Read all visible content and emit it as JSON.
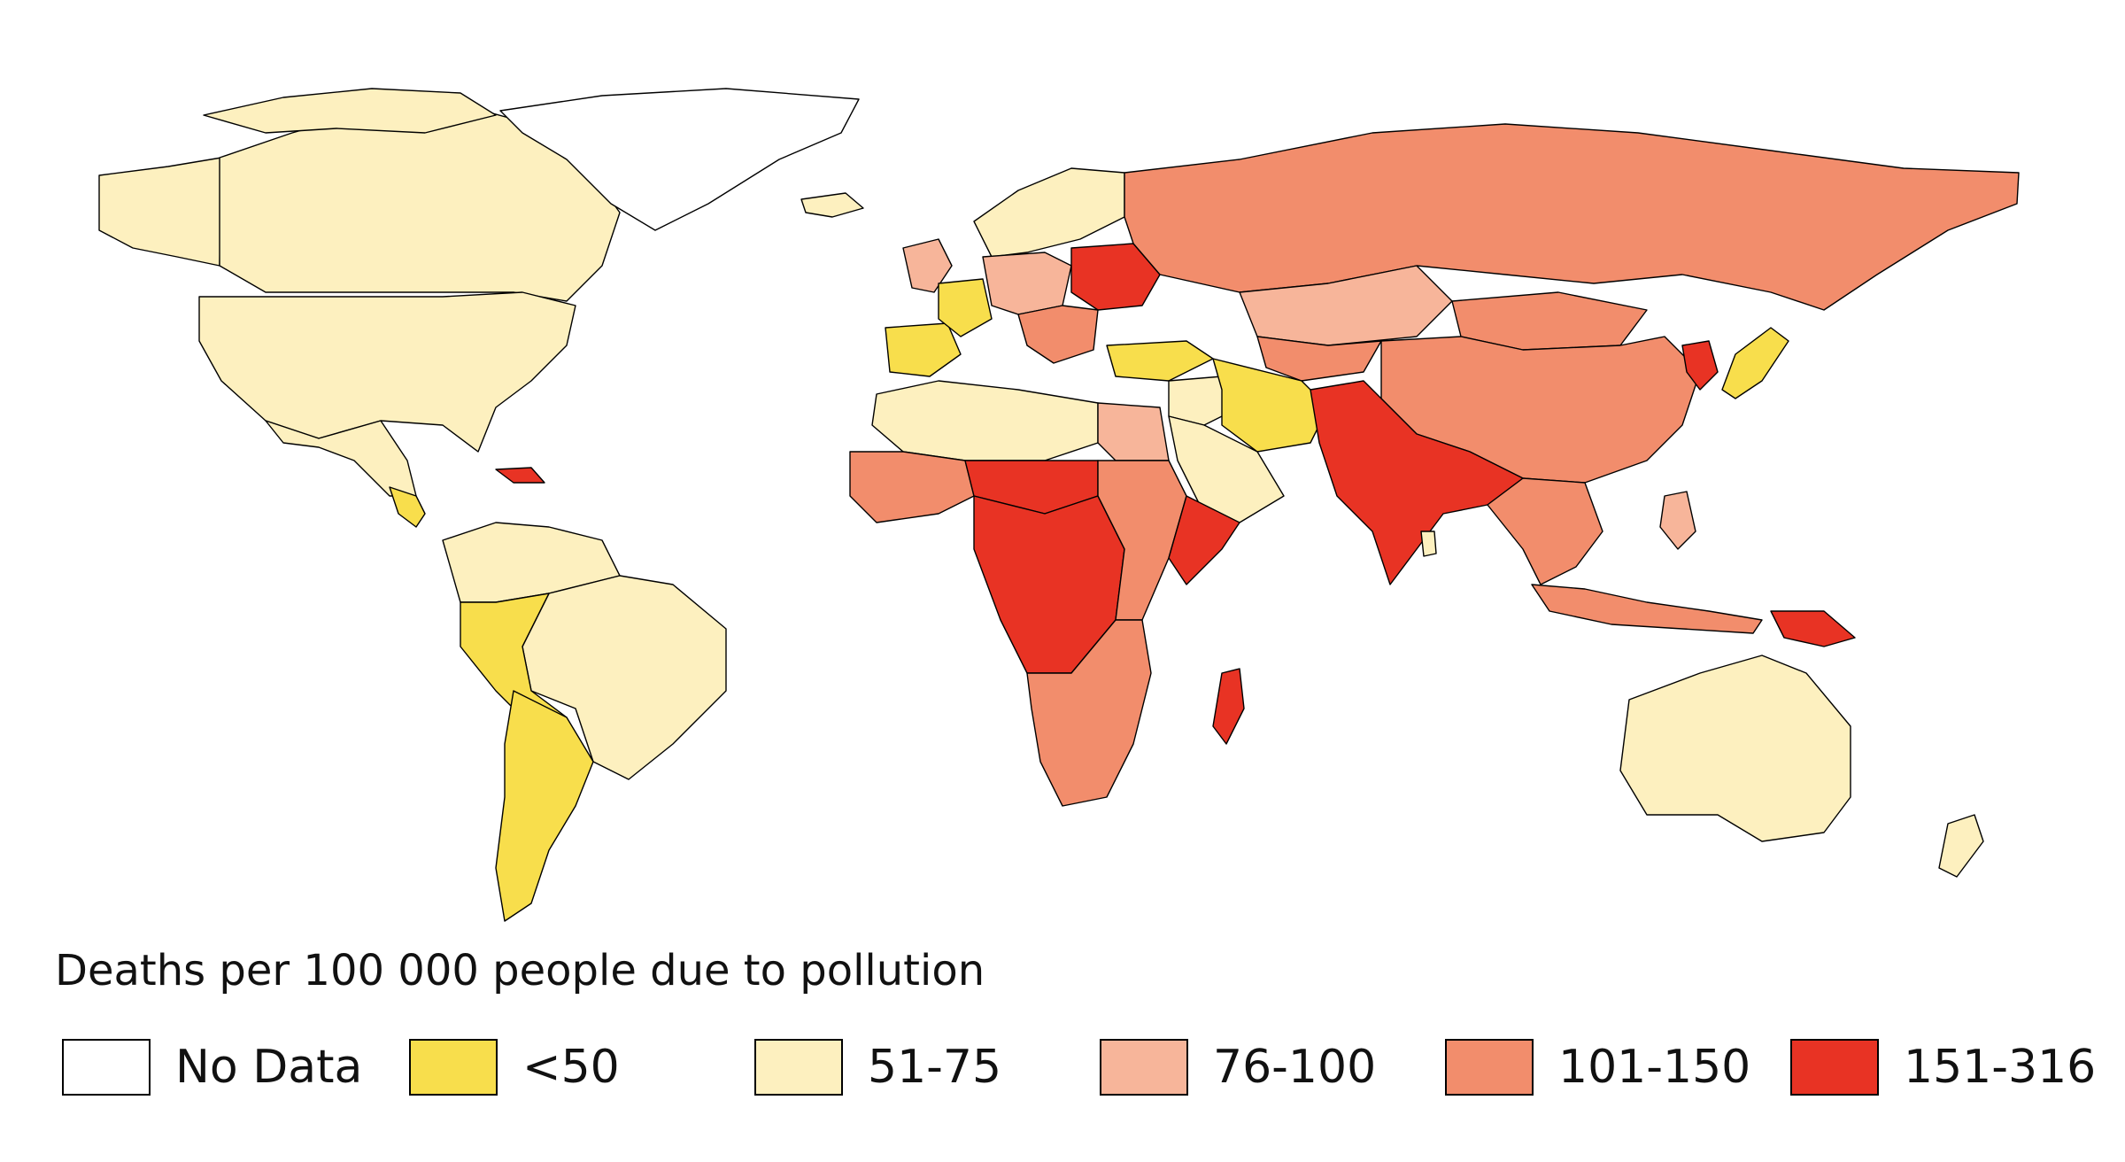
{
  "legend": {
    "title": "Deaths per 100 000 people due to pollution",
    "items": [
      {
        "label": "No Data",
        "color": "#ffffff"
      },
      {
        "label": "<50",
        "color": "#f8de4c"
      },
      {
        "label": "51-75",
        "color": "#fdf0bf"
      },
      {
        "label": "76-100",
        "color": "#f7b59a"
      },
      {
        "label": "101-150",
        "color": "#f28d6c"
      },
      {
        "label": "151-316",
        "color": "#e83324"
      }
    ]
  },
  "regions": {
    "canada": "51-75",
    "usa": "51-75",
    "mexico": "51-75",
    "alaska": "51-75",
    "greenland": "No Data",
    "iceland": "51-75",
    "central_america": "<50",
    "caribbean": "151-316",
    "colombia_venezuela": "51-75",
    "peru_bolivia": "<50",
    "brazil": "51-75",
    "chile_argentina": "<50",
    "uruguay": "<50",
    "uk_ireland": "76-100",
    "scandinavia": "51-75",
    "iberia": "<50",
    "france": "<50",
    "central_europe": "76-100",
    "eastern_europe": "151-316",
    "balkans": "101-150",
    "russia": "101-150",
    "turkey": "<50",
    "kazakhstan": "76-100",
    "central_asia": "101-150",
    "china": "101-150",
    "mongolia": "101-150",
    "korea": "151-316",
    "japan": "<50",
    "middle_east": "51-75",
    "iran_afghanistan": "<50",
    "arabia": "51-75",
    "pakistan_india": "151-316",
    "sri_lanka": "51-75",
    "southeast_asia": "101-150",
    "indonesia": "101-150",
    "philippines": "76-100",
    "png": "151-316",
    "australia": "51-75",
    "new_zealand": "51-75",
    "north_africa": "51-75",
    "egypt": "76-100",
    "west_africa": "101-150",
    "sahel": "151-316",
    "central_africa": "151-316",
    "east_africa": "101-150",
    "horn_africa": "151-316",
    "southern_africa": "101-150",
    "madagascar": "151-316"
  }
}
